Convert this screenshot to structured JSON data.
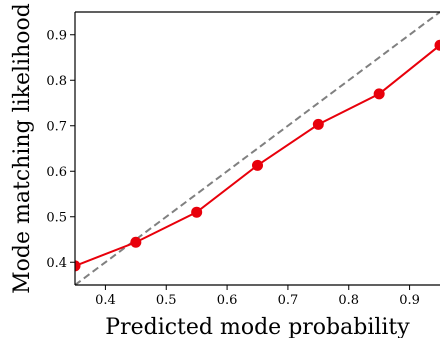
{
  "chart_data": {
    "type": "line",
    "title": "",
    "xlabel": "Predicted mode probability",
    "ylabel": "Mode matching likelihood",
    "xlim": [
      0.35,
      0.95
    ],
    "ylim": [
      0.35,
      0.95
    ],
    "xticks": [
      0.4,
      0.5,
      0.6,
      0.7,
      0.8,
      0.9
    ],
    "xtick_labels": [
      "0.4",
      "0.5",
      "0.6",
      "0.7",
      "0.8",
      "0.9"
    ],
    "yticks": [
      0.4,
      0.5,
      0.6,
      0.7,
      0.8,
      0.9
    ],
    "ytick_labels": [
      "0.4",
      "0.5",
      "0.6",
      "0.7",
      "0.8",
      "0.9"
    ],
    "grid": false,
    "series": [
      {
        "color": "#e8000b",
        "marker": "circle",
        "x": [
          0.35,
          0.45,
          0.55,
          0.65,
          0.75,
          0.85,
          0.95
        ],
        "y": [
          0.392,
          0.444,
          0.51,
          0.613,
          0.703,
          0.77,
          0.877
        ]
      }
    ],
    "reference_line": {
      "style": "dashed",
      "color": "#808080",
      "x": [
        0.35,
        0.95
      ],
      "y": [
        0.35,
        0.95
      ]
    }
  }
}
